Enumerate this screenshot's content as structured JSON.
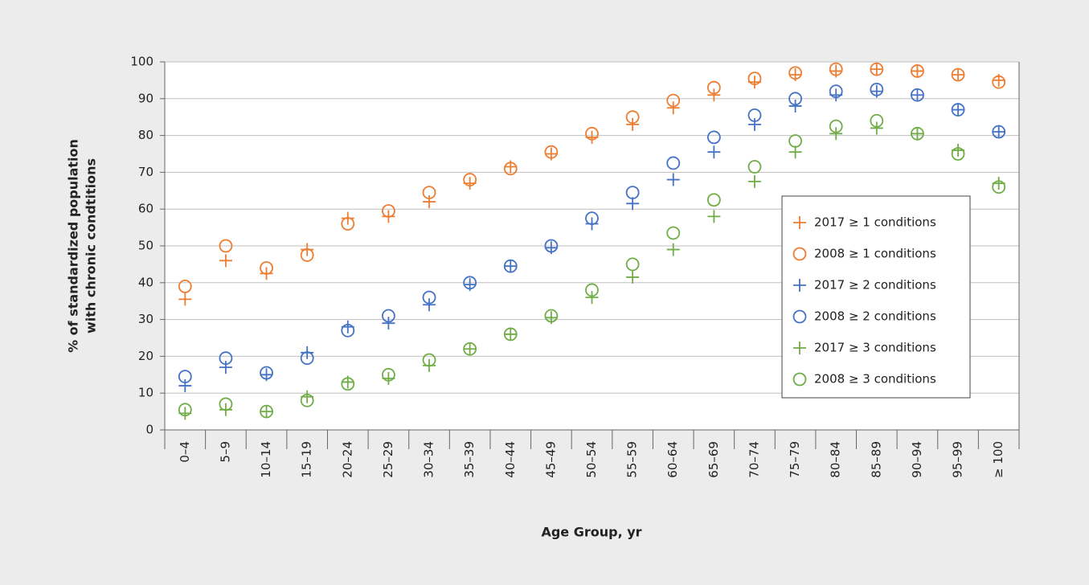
{
  "chart_data": {
    "type": "scatter",
    "ylabel": [
      "% of standardized population",
      "with chronic condtitions"
    ],
    "xlabel": "Age Group, yr",
    "categories": [
      "0–4",
      "5–9",
      "10–14",
      "15–19",
      "20–24",
      "25–29",
      "30–34",
      "35–39",
      "40–44",
      "45–49",
      "50–54",
      "55–59",
      "60–64",
      "65–69",
      "70–74",
      "75–79",
      "80–84",
      "85–89",
      "90–94",
      "95–99",
      "≥ 100"
    ],
    "ylim": [
      0,
      100
    ],
    "yticks": [
      0,
      10,
      20,
      30,
      40,
      50,
      60,
      70,
      80,
      90,
      100
    ],
    "grid": true,
    "legend": "right",
    "series": [
      {
        "name": "2017 ≥ 1 conditions",
        "color": "#ed7d31",
        "marker": "plus",
        "values": [
          35.5,
          46,
          42.5,
          49,
          57.5,
          58,
          62,
          67,
          71.5,
          75,
          79.5,
          83,
          87.5,
          91,
          94.5,
          96.5,
          97.5,
          98,
          97.5,
          96.5,
          95
        ]
      },
      {
        "name": "2008 ≥ 1 conditions",
        "color": "#ed7d31",
        "marker": "circle",
        "values": [
          39,
          50,
          44,
          47.5,
          56,
          59.5,
          64.5,
          68,
          71,
          75.5,
          80.5,
          85,
          89.5,
          93,
          95.5,
          97,
          98,
          98,
          97.5,
          96.5,
          94.5
        ]
      },
      {
        "name": "2017 ≥ 2 conditions",
        "color": "#4472c4",
        "marker": "plus",
        "values": [
          12,
          17,
          15,
          21,
          28,
          29,
          34,
          39.5,
          44.5,
          49.5,
          56,
          61.5,
          68,
          75.5,
          83,
          88,
          91,
          92,
          91,
          87,
          81
        ]
      },
      {
        "name": "2008 ≥ 2 conditions",
        "color": "#4472c4",
        "marker": "circle",
        "values": [
          14.5,
          19.5,
          15.5,
          19.5,
          27,
          31,
          36,
          40,
          44.5,
          50,
          57.5,
          64.5,
          72.5,
          79.5,
          85.5,
          90,
          92,
          92.5,
          91,
          87,
          81
        ]
      },
      {
        "name": "2017 ≥ 3 conditions",
        "color": "#70ad47",
        "marker": "plus",
        "values": [
          4.5,
          5.5,
          5,
          9,
          13,
          14,
          17.5,
          22,
          26,
          30.5,
          36,
          41.5,
          49,
          58,
          67.5,
          75.5,
          80.5,
          82,
          80.5,
          76,
          67
        ]
      },
      {
        "name": "2008 ≥ 3 conditions",
        "color": "#70ad47",
        "marker": "circle",
        "values": [
          5.5,
          7,
          5,
          8,
          12.5,
          15,
          19,
          22,
          26,
          31,
          38,
          45,
          53.5,
          62.5,
          71.5,
          78.5,
          82.5,
          84,
          80.5,
          75,
          66
        ]
      }
    ]
  }
}
